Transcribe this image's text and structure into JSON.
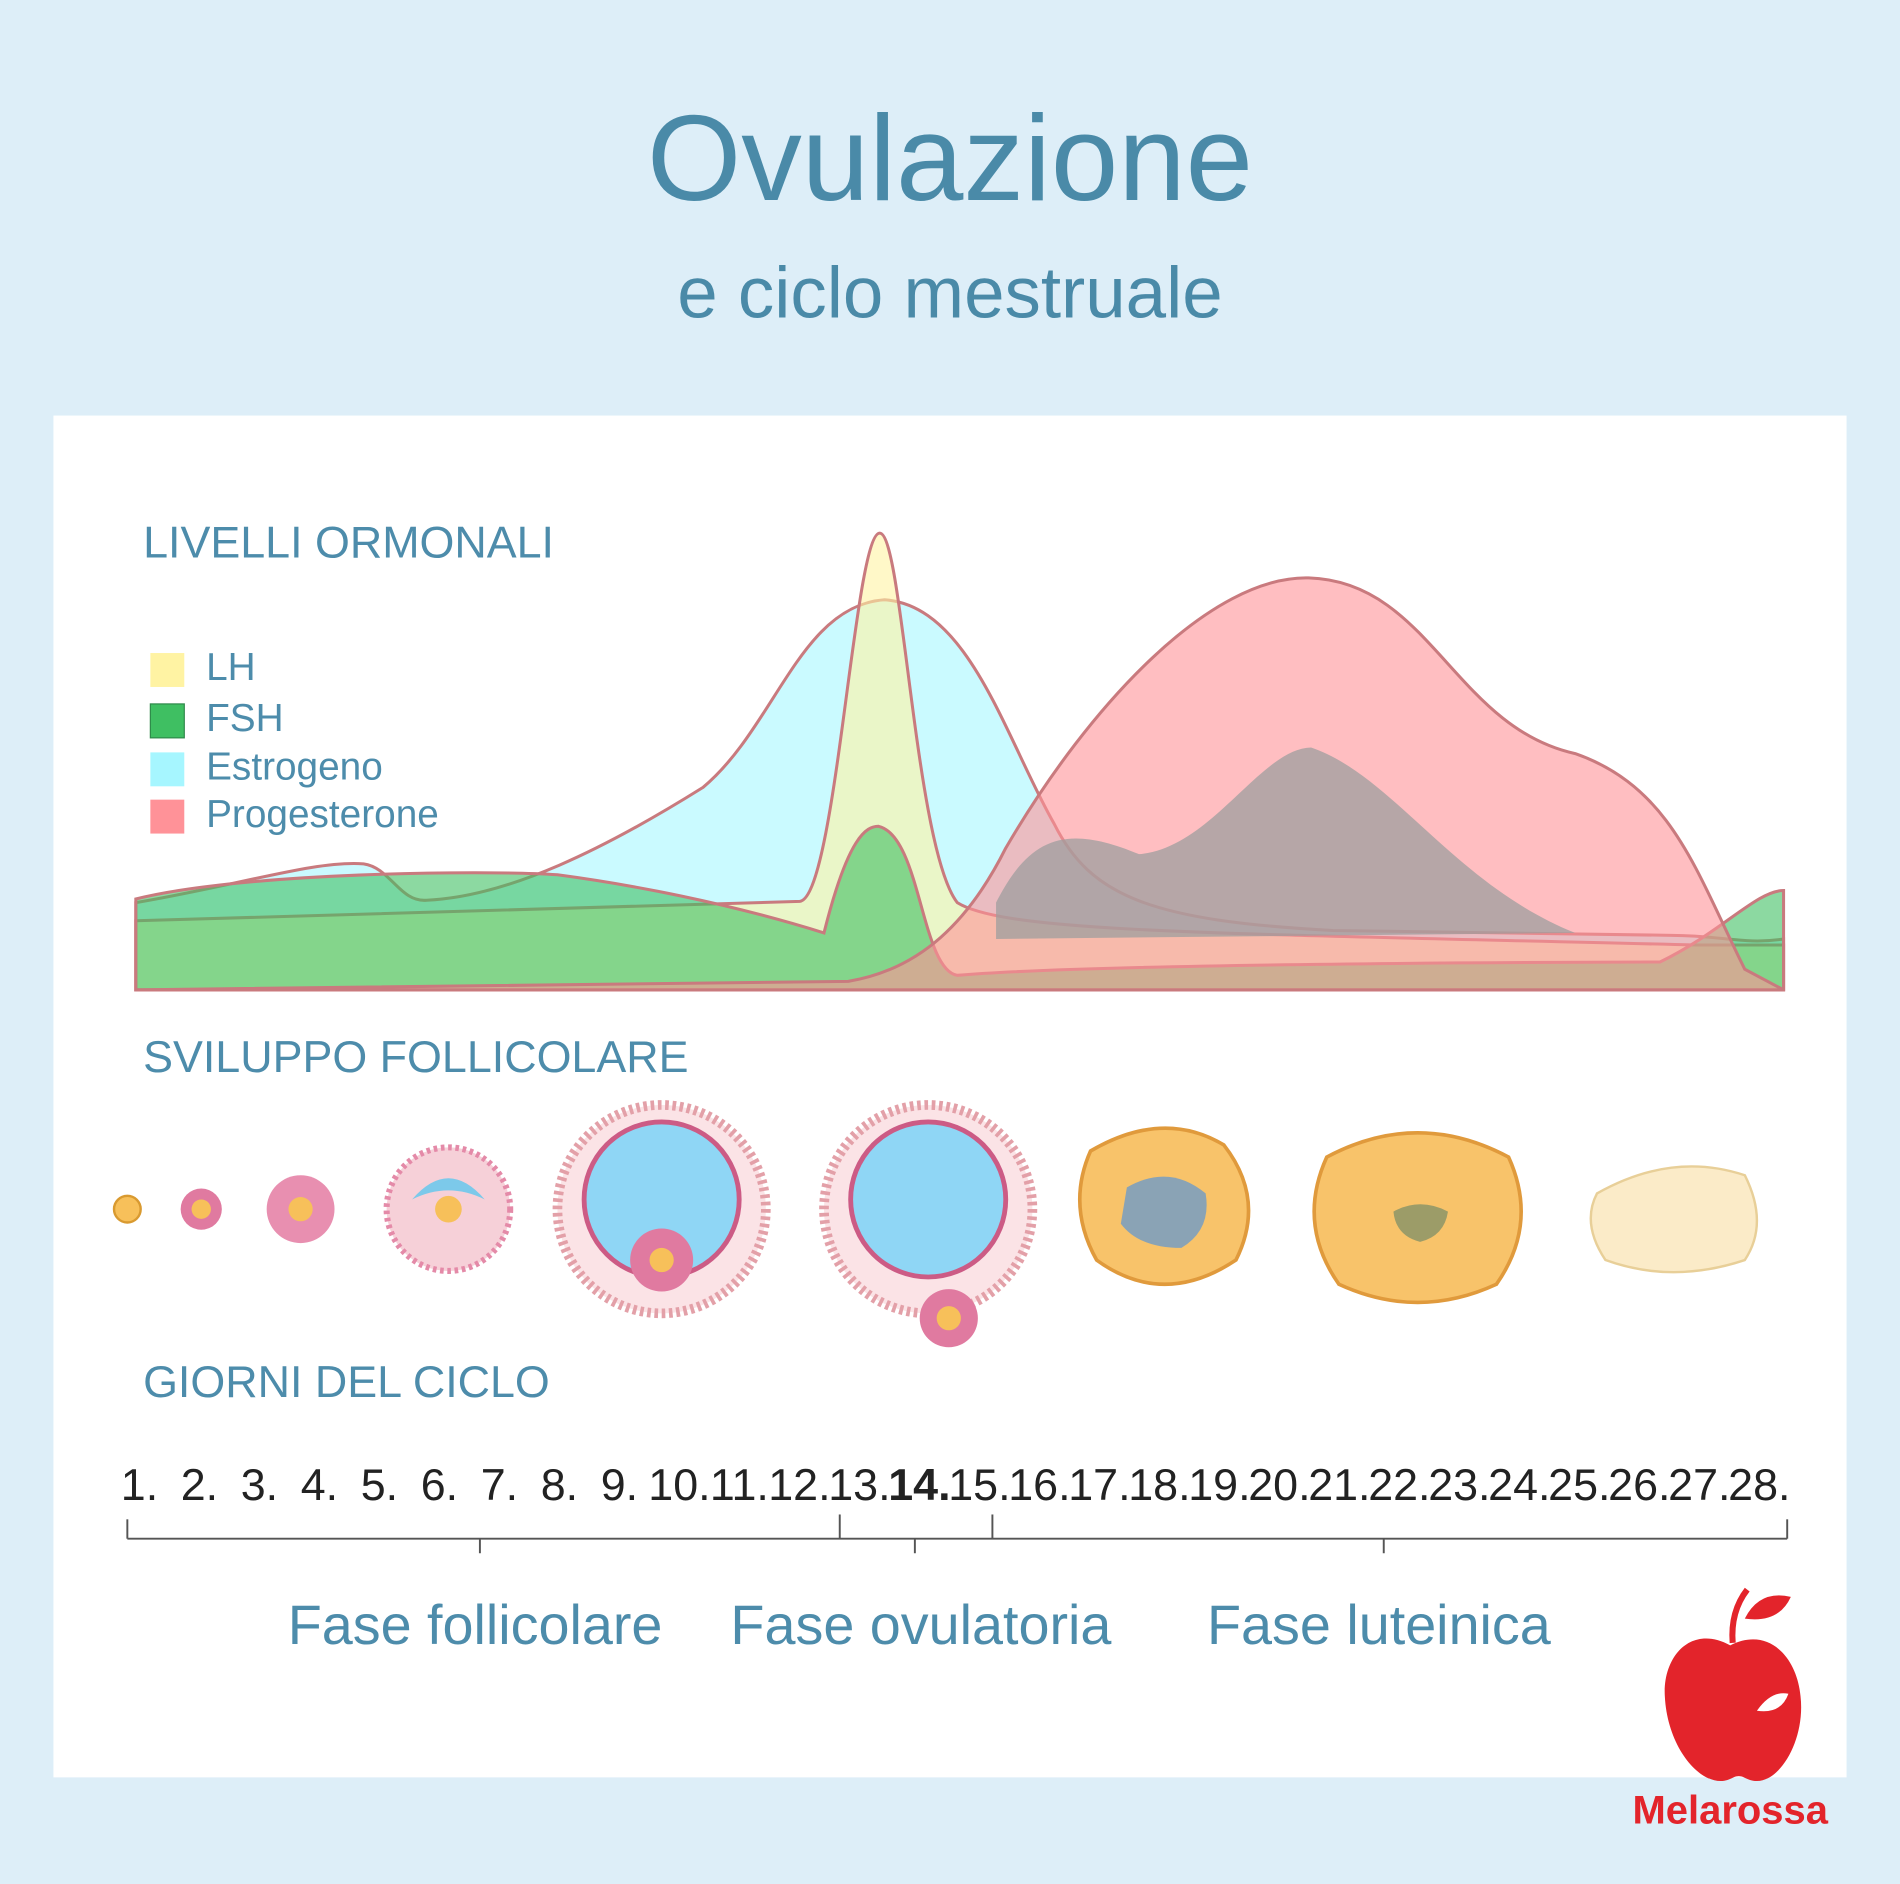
{
  "header": {
    "title": "Ovulazione",
    "subtitle": "e ciclo mestruale"
  },
  "sections": {
    "hormones": "LIVELLI ORMONALI",
    "follicles": "SVILUPPO FOLLICOLARE",
    "days": "GIORNI DEL CICLO"
  },
  "legend": [
    {
      "name": "LH",
      "color": "#fff3a3"
    },
    {
      "name": "FSH",
      "color": "#3fbf62"
    },
    {
      "name": "Estrogeno",
      "color": "#a6f6ff"
    },
    {
      "name": "Progesterone",
      "color": "#ff9298"
    }
  ],
  "days": [
    "1.",
    "2.",
    "3.",
    "4.",
    "5.",
    "6.",
    "7.",
    "8.",
    "9.",
    "10.",
    "11.",
    "12.",
    "13.",
    {
      "label": "14.",
      "color": "#e3242b"
    },
    "15.",
    "16.",
    "17.",
    "18.",
    "19.",
    "20.",
    "21.",
    "22.",
    "23.",
    "24.",
    "25.",
    "26.",
    "27.",
    "28."
  ],
  "phases": [
    "Fase follicolare",
    "Fase ovulatoria",
    "Fase luteinica"
  ],
  "brand": "Melarossa"
}
